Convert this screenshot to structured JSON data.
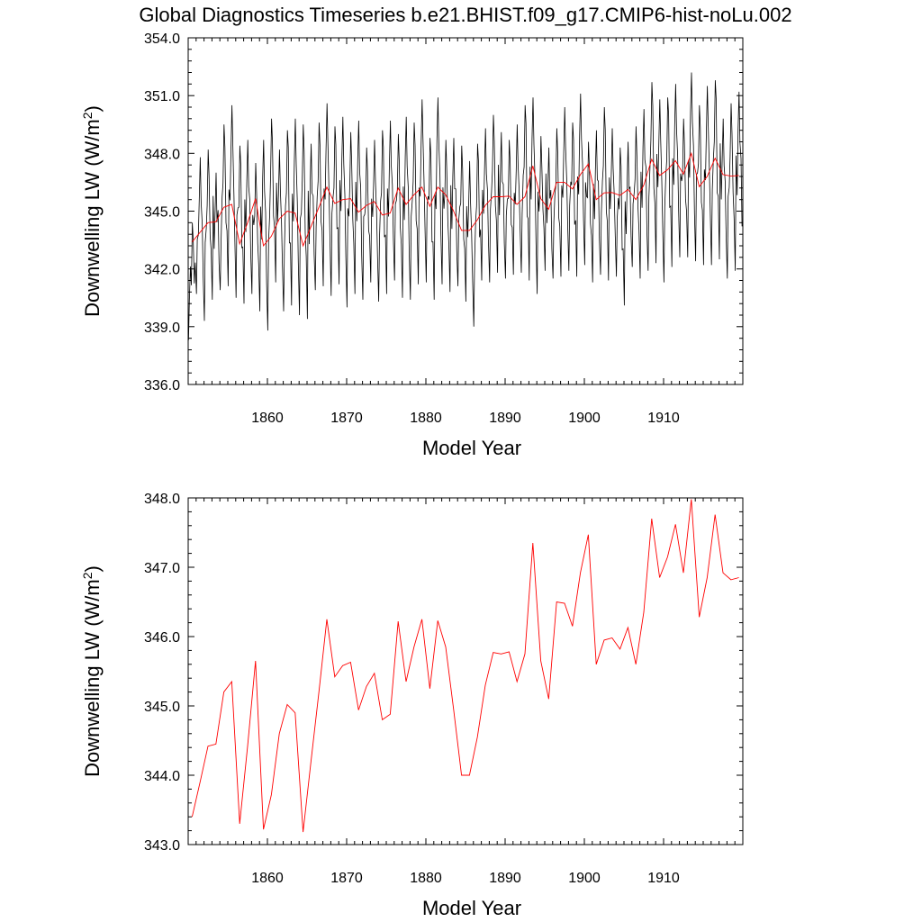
{
  "figure": {
    "title": "Global Diagnostics Timeseries b.e21.BHIST.f09_g17.CMIP6-hist-noLu.002"
  },
  "chart_data": [
    {
      "type": "line",
      "xlabel": "Model Year",
      "ylabel_main": "Downwelling LW (W/m",
      "ylabel_sup": "2",
      "ylabel_close": ")",
      "xlim": [
        1850,
        1920
      ],
      "ylim": [
        336.0,
        354.0
      ],
      "xticks": [
        1860,
        1870,
        1880,
        1890,
        1900,
        1910
      ],
      "xtick_labels": [
        "1860",
        "1870",
        "1880",
        "1890",
        "1900",
        "1910"
      ],
      "yticks": [
        336.0,
        339.0,
        342.0,
        345.0,
        348.0,
        351.0,
        354.0
      ],
      "ytick_labels": [
        "336.0",
        "339.0",
        "342.0",
        "345.0",
        "348.0",
        "351.0",
        "354.0"
      ],
      "grid": false,
      "monthly_series": {
        "color": "#000000",
        "start_year": 1850,
        "summer_peak": [
          344.4,
          347.8,
          348.2,
          347.0,
          349.5,
          350.5,
          348.4,
          348.7,
          347.5,
          348.7,
          349.8,
          348.2,
          349.2,
          349.8,
          349.5,
          348.5,
          349.6,
          350.6,
          349.4,
          349.9,
          349.1,
          349.7,
          348.3,
          348.7,
          349.2,
          349.7,
          349.0,
          349.9,
          349.6,
          350.8,
          348.8,
          350.9,
          348.7,
          348.8,
          348.4,
          347.6,
          348.5,
          349.3,
          350.0,
          349.1,
          348.7,
          349.5,
          350.5,
          350.9,
          348.9,
          348.3,
          349.3,
          350.4,
          349.6,
          351.1,
          348.6,
          349.2,
          350.4,
          349.3,
          348.3,
          348.6,
          349.4,
          350.3,
          351.7,
          350.8,
          350.9,
          351.6,
          349.8,
          352.2,
          350.5,
          351.5,
          351.8,
          349.8,
          350.6,
          351.2
        ],
        "winter_trough": [
          338.3,
          340.7,
          339.3,
          340.4,
          340.9,
          341.1,
          340.5,
          340.2,
          340.7,
          339.8,
          338.8,
          341.3,
          339.8,
          340.1,
          339.6,
          339.4,
          340.9,
          341.1,
          340.6,
          341.2,
          340.0,
          340.7,
          340.4,
          341.3,
          340.3,
          340.7,
          341.4,
          340.5,
          340.4,
          341.2,
          341.3,
          340.4,
          341.2,
          340.8,
          341.1,
          340.3,
          339.0,
          341.4,
          341.3,
          341.8,
          341.5,
          341.7,
          341.8,
          341.4,
          340.7,
          341.9,
          341.5,
          341.6,
          341.9,
          341.6,
          342.2,
          341.3,
          341.7,
          341.4,
          341.6,
          340.1,
          342.1,
          341.5,
          341.9,
          342.3,
          341.3,
          342.1,
          342.6,
          342.6,
          342.4,
          342.2,
          342.2,
          342.5,
          341.5,
          341.9
        ]
      },
      "annual_series": {
        "color": "#ff0000",
        "x": [
          1850,
          1851,
          1852,
          1853,
          1854,
          1855,
          1856,
          1857,
          1858,
          1859,
          1860,
          1861,
          1862,
          1863,
          1864,
          1865,
          1866,
          1867,
          1868,
          1869,
          1870,
          1871,
          1872,
          1873,
          1874,
          1875,
          1876,
          1877,
          1878,
          1879,
          1880,
          1881,
          1882,
          1883,
          1884,
          1885,
          1886,
          1887,
          1888,
          1889,
          1890,
          1891,
          1892,
          1893,
          1894,
          1895,
          1896,
          1897,
          1898,
          1899,
          1900,
          1901,
          1902,
          1903,
          1904,
          1905,
          1906,
          1907,
          1908,
          1909,
          1910,
          1911,
          1912,
          1913,
          1914,
          1915,
          1916,
          1917,
          1918,
          1919
        ],
        "y": [
          343.4,
          343.9,
          344.4,
          344.45,
          345.2,
          345.35,
          343.3,
          344.4,
          345.65,
          343.2,
          343.7,
          344.6,
          345.0,
          344.9,
          343.2,
          344.2,
          345.2,
          346.25,
          345.4,
          345.6,
          345.65,
          344.95,
          345.3,
          345.5,
          344.8,
          344.9,
          346.2,
          345.35,
          345.85,
          346.25,
          345.25,
          346.25,
          345.85,
          345.0,
          344.0,
          344.0,
          344.55,
          345.3,
          345.75,
          345.75,
          345.78,
          345.35,
          345.75,
          347.35,
          345.65,
          345.1,
          346.5,
          346.5,
          346.15,
          346.9,
          347.45,
          345.6,
          345.95,
          345.97,
          345.82,
          346.12,
          345.6,
          346.35,
          347.7,
          346.85,
          347.15,
          347.62,
          346.92,
          348.0,
          346.27,
          346.8,
          347.75,
          346.9,
          346.82,
          346.85
        ]
      }
    },
    {
      "type": "line",
      "xlabel": "Model Year",
      "ylabel_main": "Downwelling LW (W/m",
      "ylabel_sup": "2",
      "ylabel_close": ")",
      "xlim": [
        1850,
        1920
      ],
      "ylim": [
        343.0,
        348.0
      ],
      "xticks": [
        1860,
        1870,
        1880,
        1890,
        1900,
        1910
      ],
      "xtick_labels": [
        "1860",
        "1870",
        "1880",
        "1890",
        "1900",
        "1910"
      ],
      "yticks": [
        343.0,
        344.0,
        345.0,
        346.0,
        347.0,
        348.0
      ],
      "ytick_labels": [
        "343.0",
        "344.0",
        "345.0",
        "346.0",
        "347.0",
        "348.0"
      ],
      "grid": false,
      "series": [
        {
          "color": "#ff0000",
          "x": [
            1850,
            1851,
            1852,
            1853,
            1854,
            1855,
            1856,
            1857,
            1858,
            1859,
            1860,
            1861,
            1862,
            1863,
            1864,
            1865,
            1866,
            1867,
            1868,
            1869,
            1870,
            1871,
            1872,
            1873,
            1874,
            1875,
            1876,
            1877,
            1878,
            1879,
            1880,
            1881,
            1882,
            1883,
            1884,
            1885,
            1886,
            1887,
            1888,
            1889,
            1890,
            1891,
            1892,
            1893,
            1894,
            1895,
            1896,
            1897,
            1898,
            1899,
            1900,
            1901,
            1902,
            1903,
            1904,
            1905,
            1906,
            1907,
            1908,
            1909,
            1910,
            1911,
            1912,
            1913,
            1914,
            1915,
            1916,
            1917,
            1918,
            1919
          ],
          "values": [
            343.4,
            343.9,
            344.42,
            344.45,
            345.2,
            345.35,
            343.3,
            344.42,
            345.65,
            343.22,
            343.72,
            344.6,
            345.02,
            344.9,
            343.18,
            344.2,
            345.2,
            346.25,
            345.42,
            345.58,
            345.63,
            344.94,
            345.28,
            345.47,
            344.8,
            344.88,
            346.22,
            345.35,
            345.85,
            346.25,
            345.25,
            346.23,
            345.85,
            344.95,
            344.0,
            344.0,
            344.55,
            345.3,
            345.77,
            345.75,
            345.78,
            345.35,
            345.75,
            347.35,
            345.65,
            345.1,
            346.5,
            346.48,
            346.15,
            346.92,
            347.47,
            345.6,
            345.95,
            345.98,
            345.82,
            346.13,
            345.6,
            346.35,
            347.7,
            346.85,
            347.15,
            347.62,
            346.92,
            347.98,
            346.28,
            346.85,
            347.76,
            346.92,
            346.82,
            346.85
          ]
        }
      ]
    }
  ]
}
